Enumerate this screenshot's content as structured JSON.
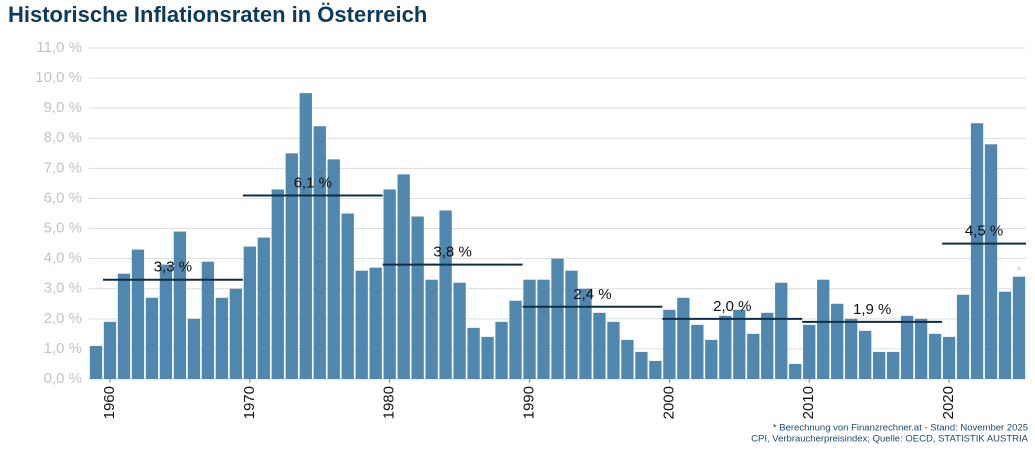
{
  "chart_data": {
    "type": "bar",
    "title": "Historische Inflationsraten in Österreich",
    "x": [
      1959,
      1960,
      1961,
      1962,
      1963,
      1964,
      1965,
      1966,
      1967,
      1968,
      1969,
      1970,
      1971,
      1972,
      1973,
      1974,
      1975,
      1976,
      1977,
      1978,
      1979,
      1980,
      1981,
      1982,
      1983,
      1984,
      1985,
      1986,
      1987,
      1988,
      1989,
      1990,
      1991,
      1992,
      1993,
      1994,
      1995,
      1996,
      1997,
      1998,
      1999,
      2000,
      2001,
      2002,
      2003,
      2004,
      2005,
      2006,
      2007,
      2008,
      2009,
      2010,
      2011,
      2012,
      2013,
      2014,
      2015,
      2016,
      2017,
      2018,
      2019,
      2020,
      2021,
      2022,
      2023,
      2024,
      2025
    ],
    "values": [
      1.1,
      1.9,
      3.5,
      4.3,
      2.7,
      3.8,
      4.9,
      2.0,
      3.9,
      2.7,
      3.0,
      4.4,
      4.7,
      6.3,
      7.5,
      9.5,
      8.4,
      7.3,
      5.5,
      3.6,
      3.7,
      6.3,
      6.8,
      5.4,
      3.3,
      5.6,
      3.2,
      1.7,
      1.4,
      1.9,
      2.6,
      3.3,
      3.3,
      4.0,
      3.6,
      3.0,
      2.2,
      1.9,
      1.3,
      0.9,
      0.6,
      2.3,
      2.7,
      1.8,
      1.3,
      2.1,
      2.3,
      1.5,
      2.2,
      3.2,
      0.5,
      1.8,
      3.3,
      2.5,
      2.0,
      1.6,
      0.9,
      0.9,
      2.1,
      2.0,
      1.5,
      1.4,
      2.8,
      8.5,
      7.8,
      2.9,
      3.4
    ],
    "color": "#4f87ae",
    "xlim": [
      1958.5,
      2025.5
    ],
    "xticks": [
      1960,
      1970,
      1980,
      1990,
      2000,
      2010,
      2020
    ],
    "ylim": [
      0,
      11
    ],
    "yticks": [
      {
        "value": 0,
        "label": "0,0 %"
      },
      {
        "value": 1,
        "label": "1,0 %"
      },
      {
        "value": 2,
        "label": "2,0 %"
      },
      {
        "value": 3,
        "label": "3,0 %"
      },
      {
        "value": 4,
        "label": "4,0 %"
      },
      {
        "value": 5,
        "label": "5,0 %"
      },
      {
        "value": 6,
        "label": "6,0 %"
      },
      {
        "value": 7,
        "label": "7,0 %"
      },
      {
        "value": 8,
        "label": "8,0 %"
      },
      {
        "value": 9,
        "label": "9,0 %"
      },
      {
        "value": 10,
        "label": "10,0 %"
      },
      {
        "value": 11,
        "label": "11,0 %"
      }
    ],
    "grid": true,
    "averages": [
      {
        "from": 1960,
        "to": 1969,
        "value": 3.3,
        "label": "3,3 %"
      },
      {
        "from": 1970,
        "to": 1979,
        "value": 6.1,
        "label": "6,1 %"
      },
      {
        "from": 1980,
        "to": 1989,
        "value": 3.8,
        "label": "3,8 %"
      },
      {
        "from": 1990,
        "to": 1999,
        "value": 2.4,
        "label": "2,4 %"
      },
      {
        "from": 2000,
        "to": 2009,
        "value": 2.0,
        "label": "2,0 %"
      },
      {
        "from": 2010,
        "to": 2019,
        "value": 1.9,
        "label": "1,9 %"
      },
      {
        "from": 2020,
        "to": 2025,
        "value": 4.5,
        "label": "4,5 %"
      }
    ],
    "average_color": "#0d2d45",
    "annotation": {
      "x": 2025,
      "text": "*"
    },
    "footnotes": [
      "* Berechnung von Finanzrechner.at - Stand: November 2025",
      "CPI, Verbraucherpreisindex; Quelle: OECD, STATISTIK AUSTRIA"
    ]
  }
}
